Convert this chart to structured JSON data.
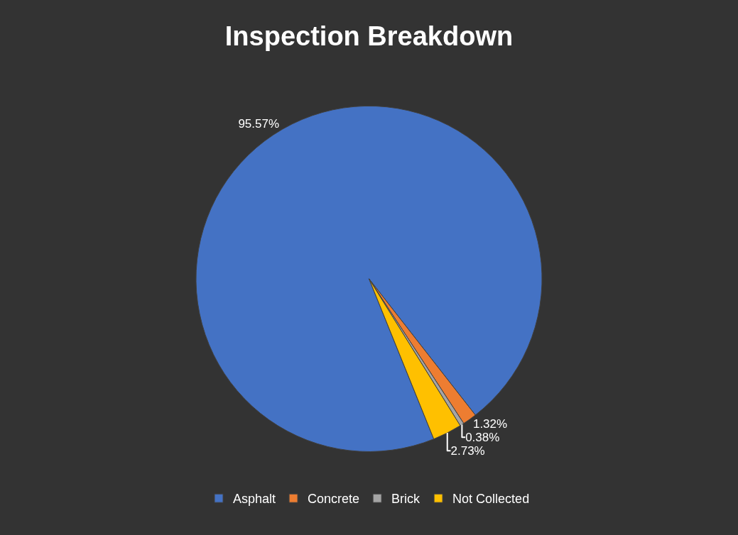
{
  "chart_data": {
    "type": "pie",
    "title": "Inspection Breakdown",
    "categories": [
      "Asphalt",
      "Concrete",
      "Brick",
      "Not Collected"
    ],
    "values": [
      95.57,
      1.32,
      0.38,
      2.73
    ],
    "colors": [
      "#4472c4",
      "#ed7d31",
      "#a5a5a5",
      "#ffc000"
    ],
    "value_labels": [
      "95.57%",
      "1.32%",
      "0.38%",
      "2.73%"
    ],
    "legend": "bottom"
  }
}
